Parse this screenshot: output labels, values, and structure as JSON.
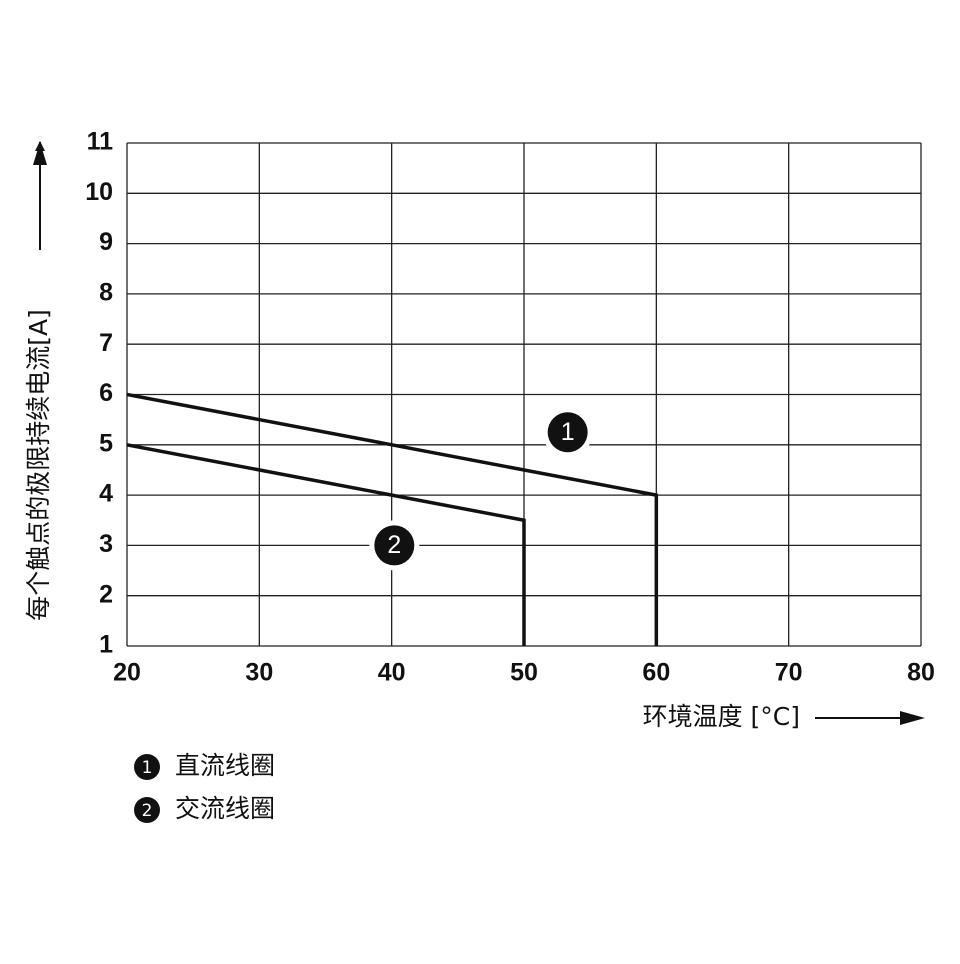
{
  "chart_data": {
    "type": "line",
    "y_label": "每个触点的极限持续电流[A]",
    "x_label": "环境温度 [°C]",
    "xlim": [
      20,
      80
    ],
    "xticks": [
      20,
      30,
      40,
      50,
      60,
      70,
      80
    ],
    "ylim": [
      1,
      11
    ],
    "yticks": [
      1,
      2,
      3,
      4,
      5,
      6,
      7,
      8,
      9,
      10,
      11
    ],
    "grid": true,
    "series": [
      {
        "name": "直流线圈",
        "color": "#111111",
        "x": [
          20,
          60,
          60
        ],
        "values": [
          6,
          4,
          1
        ]
      },
      {
        "name": "交流线圈",
        "color": "#111111",
        "x": [
          20,
          50,
          50
        ],
        "values": [
          5,
          3.5,
          1
        ]
      }
    ],
    "annotations": [
      {
        "text": "1",
        "x": 53.3,
        "y": 5.25
      },
      {
        "text": "2",
        "x": 40.2,
        "y": 3.0
      }
    ]
  }
}
